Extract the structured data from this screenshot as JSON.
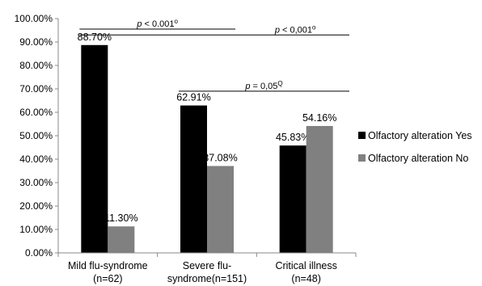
{
  "chart_data": {
    "type": "bar",
    "categories": [
      [
        "Mild flu-syndrome",
        "(n=62)"
      ],
      [
        "Severe flu-",
        "syndrome(n=151)"
      ],
      [
        "Critical illness",
        "(n=48)"
      ]
    ],
    "series": [
      {
        "name": "Olfactory alteration Yes",
        "color": "#000000",
        "values": [
          88.7,
          62.91,
          45.83
        ],
        "labels": [
          "88.70%",
          "62.91%",
          "45.83%"
        ]
      },
      {
        "name": "Olfactory alteration No",
        "color": "#808080",
        "values": [
          11.3,
          37.08,
          54.16
        ],
        "labels": [
          "11.30%",
          "37.08%",
          "54.16%"
        ]
      }
    ],
    "ylim": [
      0,
      100
    ],
    "yticks": [
      "0.00%",
      "10.00%",
      "20.00%",
      "30.00%",
      "40.00%",
      "50.00%",
      "60.00%",
      "70.00%",
      "80.00%",
      "90.00%",
      "100.00%"
    ],
    "grid": false,
    "legend_position": "right",
    "annotations": [
      {
        "text": "p < 0.001",
        "superscript": "o",
        "from_category": 0,
        "to_category": 1,
        "level": 95.5
      },
      {
        "text": "p < 0,001",
        "superscript": "o",
        "from_category": 0,
        "to_category": 2,
        "level": 93.0
      },
      {
        "text": "p = 0,05",
        "superscript": "Q",
        "from_category": 1,
        "to_category": 2,
        "level": 69.0
      }
    ]
  }
}
